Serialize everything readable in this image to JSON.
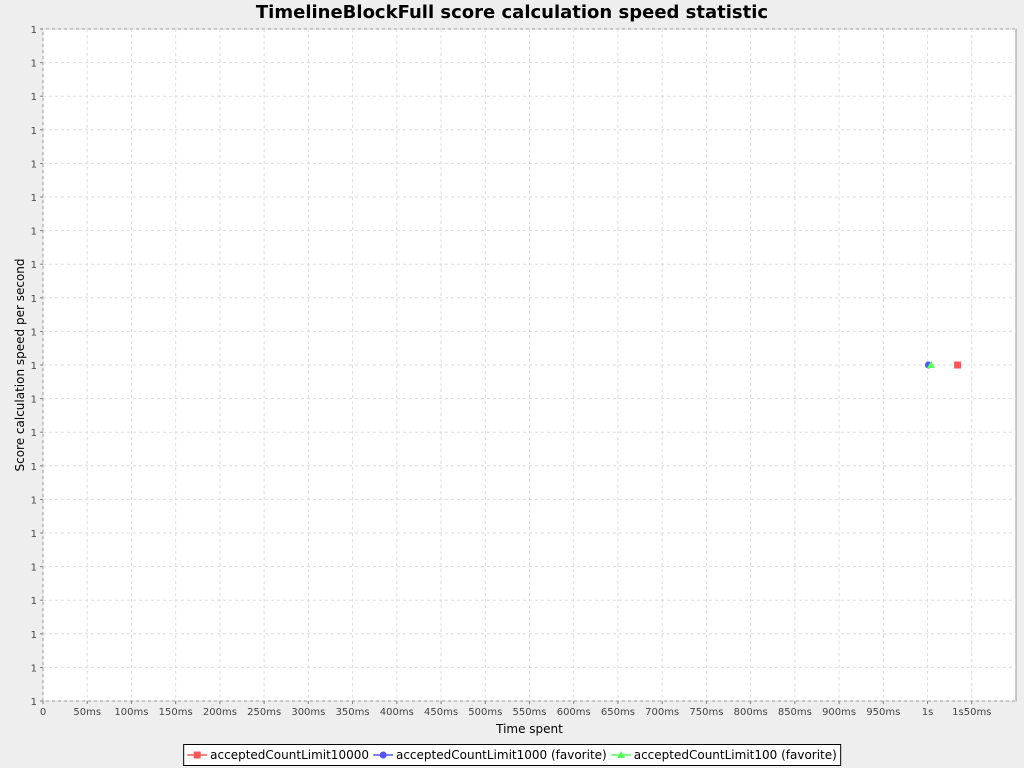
{
  "chart_data": {
    "type": "scatter",
    "title": "TimelineBlockFull score calculation speed statistic",
    "xlabel": "Time spent",
    "ylabel": "Score calculation speed per second",
    "xlim": [
      0,
      1100
    ],
    "ylim": [
      0,
      20
    ],
    "x_ticks": [
      {
        "value": 0,
        "label": "0"
      },
      {
        "value": 50,
        "label": "50ms"
      },
      {
        "value": 100,
        "label": "100ms"
      },
      {
        "value": 150,
        "label": "150ms"
      },
      {
        "value": 200,
        "label": "200ms"
      },
      {
        "value": 250,
        "label": "250ms"
      },
      {
        "value": 300,
        "label": "300ms"
      },
      {
        "value": 350,
        "label": "350ms"
      },
      {
        "value": 400,
        "label": "400ms"
      },
      {
        "value": 450,
        "label": "450ms"
      },
      {
        "value": 500,
        "label": "500ms"
      },
      {
        "value": 550,
        "label": "550ms"
      },
      {
        "value": 600,
        "label": "600ms"
      },
      {
        "value": 650,
        "label": "650ms"
      },
      {
        "value": 700,
        "label": "700ms"
      },
      {
        "value": 750,
        "label": "750ms"
      },
      {
        "value": 800,
        "label": "800ms"
      },
      {
        "value": 850,
        "label": "850ms"
      },
      {
        "value": 900,
        "label": "900ms"
      },
      {
        "value": 950,
        "label": "950ms"
      },
      {
        "value": 1000,
        "label": "1s"
      },
      {
        "value": 1050,
        "label": "1s50ms"
      }
    ],
    "y_tick_label": "1",
    "y_tick_count": 21,
    "grid": true,
    "legend_position": "bottom",
    "series": [
      {
        "name": "acceptedCountLimit10000",
        "color": "#ff5555",
        "marker": "square",
        "points": [
          {
            "x": 1034,
            "y": 10
          }
        ]
      },
      {
        "name": "acceptedCountLimit1000 (favorite)",
        "color": "#5555ff",
        "marker": "circle",
        "points": [
          {
            "x": 1001,
            "y": 10
          }
        ]
      },
      {
        "name": "acceptedCountLimit100 (favorite)",
        "color": "#55ff55",
        "marker": "triangle",
        "points": [
          {
            "x": 1004,
            "y": 10
          }
        ]
      }
    ]
  }
}
